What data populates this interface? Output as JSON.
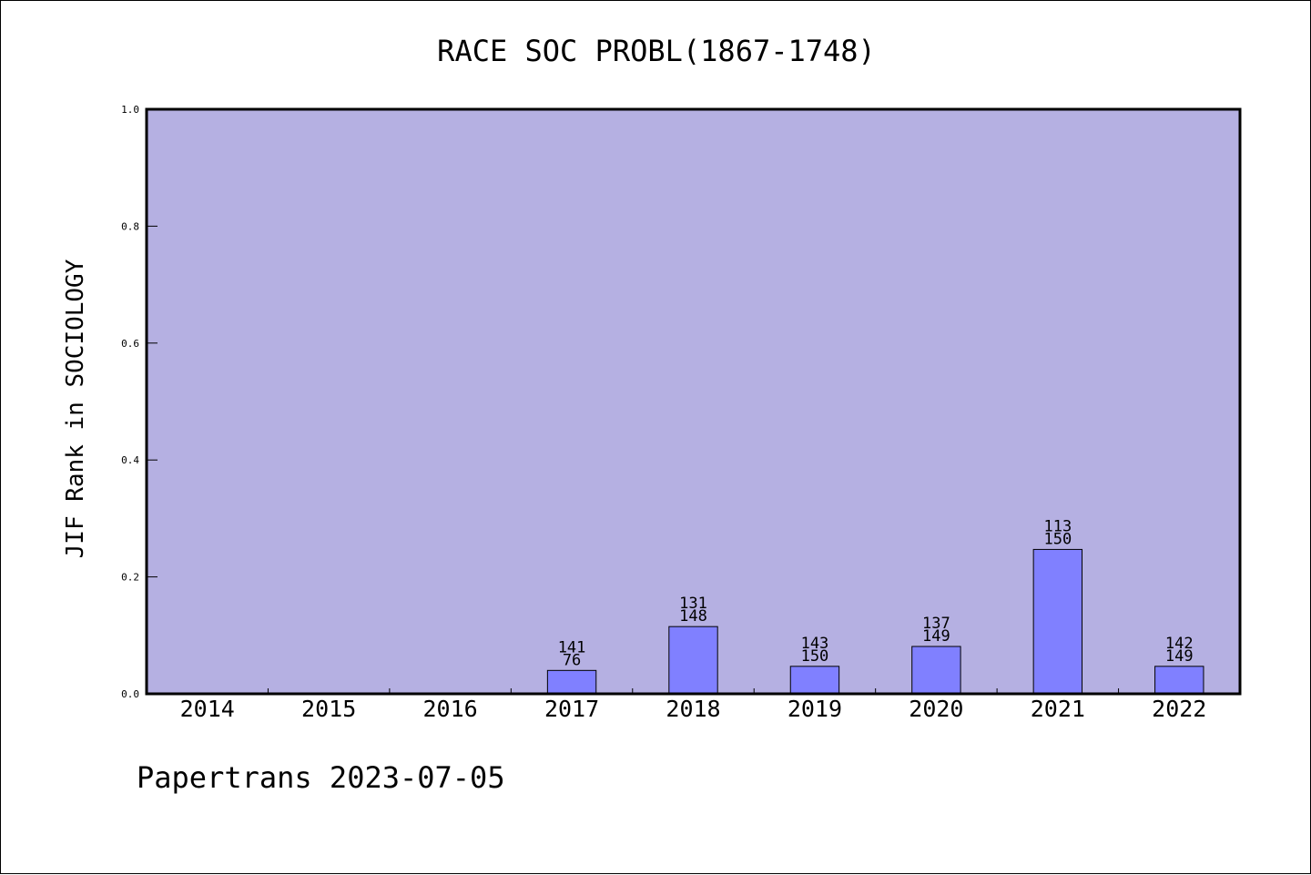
{
  "chart_data": {
    "type": "bar",
    "title": "RACE SOC PROBL(1867-1748)",
    "ylabel": "JIF Rank in SOCIOLOGY",
    "xlabel": "",
    "ylim": [
      0,
      1.0
    ],
    "yticks": [
      0.0,
      0.2,
      0.4,
      0.6,
      0.8,
      1.0
    ],
    "ytick_labels": [
      "0.0",
      "0.2",
      "0.4",
      "0.6",
      "0.8",
      "1.0"
    ],
    "categories": [
      "2014",
      "2015",
      "2016",
      "2017",
      "2018",
      "2019",
      "2020",
      "2021",
      "2022"
    ],
    "values": [
      null,
      null,
      null,
      0.04,
      0.115,
      0.047,
      0.081,
      0.247,
      0.047
    ],
    "labels_top": [
      "",
      "",
      "",
      "141",
      "131",
      "143",
      "137",
      "113",
      "142"
    ],
    "labels_bottom": [
      "",
      "",
      "",
      "76",
      "148",
      "150",
      "149",
      "150",
      "149"
    ],
    "grid": false,
    "colors": {
      "plot_background": "#b5b0e2",
      "bar_fill": "#8080ff",
      "bar_edge": "#000000"
    }
  },
  "footer": {
    "text": "Papertrans 2023-07-05"
  }
}
